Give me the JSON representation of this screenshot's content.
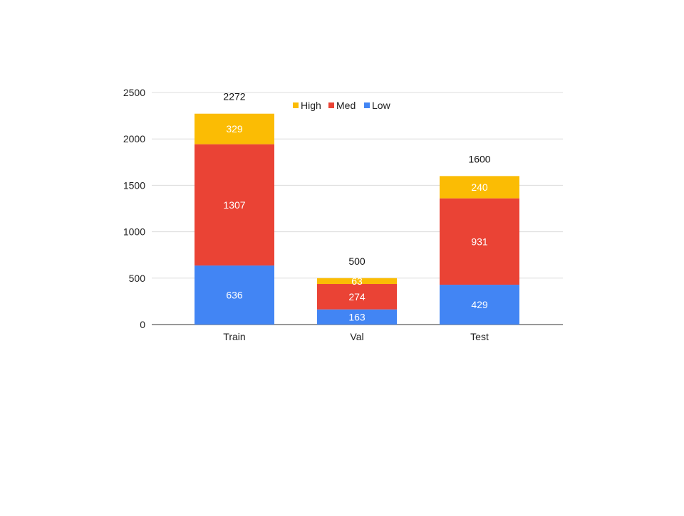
{
  "chart_data": {
    "type": "bar",
    "stacked": true,
    "categories": [
      "Train",
      "Val",
      "Test"
    ],
    "series": [
      {
        "name": "Low",
        "color": "#4285F4",
        "values": [
          636,
          163,
          429
        ]
      },
      {
        "name": "Med",
        "color": "#EA4335",
        "values": [
          1307,
          274,
          931
        ]
      },
      {
        "name": "High",
        "color": "#FBBC04",
        "values": [
          329,
          63,
          240
        ]
      }
    ],
    "totals": [
      2272,
      500,
      1600
    ],
    "y_ticks": [
      0,
      500,
      1000,
      1500,
      2000,
      2500
    ],
    "ylim": [
      0,
      2500
    ],
    "grid": true,
    "legend_position": "top",
    "legend_order": [
      "High",
      "Med",
      "Low"
    ]
  }
}
